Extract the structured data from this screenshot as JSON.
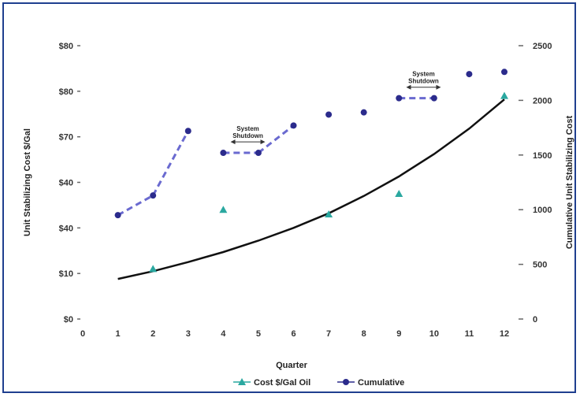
{
  "chart_data": {
    "type": "scatter",
    "title": "",
    "xlabel": "Quarter",
    "ylabel_left": "Unit Stabilizing Cost $/Gal",
    "ylabel_right": "Cumulative Unit Stabilizing Cost",
    "x_ticks": [
      "0",
      "1",
      "2",
      "3",
      "4",
      "5",
      "6",
      "7",
      "8",
      "9",
      "10",
      "11",
      "12"
    ],
    "y_left_ticks": [
      "$0",
      "$10",
      "$40",
      "$40",
      "$70",
      "$80",
      "$80"
    ],
    "y_right_ticks": [
      "0",
      "500",
      "1000",
      "1500",
      "2000",
      "2500"
    ],
    "xlim": [
      0,
      12
    ],
    "ylim_left": [
      0,
      6
    ],
    "ylim_right": [
      0,
      2500
    ],
    "grid": false,
    "legend_position": "bottom",
    "series": [
      {
        "name": "Cost $/Gal Oil",
        "color": "#2aa8a0",
        "marker": "triangle",
        "axis": "left",
        "x": [
          2,
          4,
          7,
          9,
          12
        ],
        "y": [
          1.1,
          2.4,
          2.3,
          2.75,
          4.9
        ]
      },
      {
        "name": "Cumulative",
        "color": "#2b2b8c",
        "marker": "dot",
        "axis": "right",
        "x": [
          1,
          2,
          3,
          4,
          5,
          6,
          7,
          8,
          9,
          10,
          11,
          12
        ],
        "y": [
          950,
          1130,
          1720,
          1520,
          1520,
          1770,
          1870,
          1890,
          2020,
          2020,
          2240,
          2260
        ]
      }
    ],
    "trendline": {
      "color": "#111111",
      "x": [
        1,
        2,
        3,
        4,
        5,
        6,
        7,
        8,
        9,
        10,
        11,
        12
      ],
      "y": [
        0.88,
        1.05,
        1.25,
        1.47,
        1.72,
        2.0,
        2.32,
        2.7,
        3.13,
        3.62,
        4.18,
        4.82
      ]
    },
    "annotations": [
      {
        "lines": [
          "System",
          "Shutdown"
        ],
        "x": 4.7,
        "y_right": 1620
      },
      {
        "lines": [
          "System",
          "Shutdown"
        ],
        "x": 9.7,
        "y_right": 2120
      }
    ]
  }
}
